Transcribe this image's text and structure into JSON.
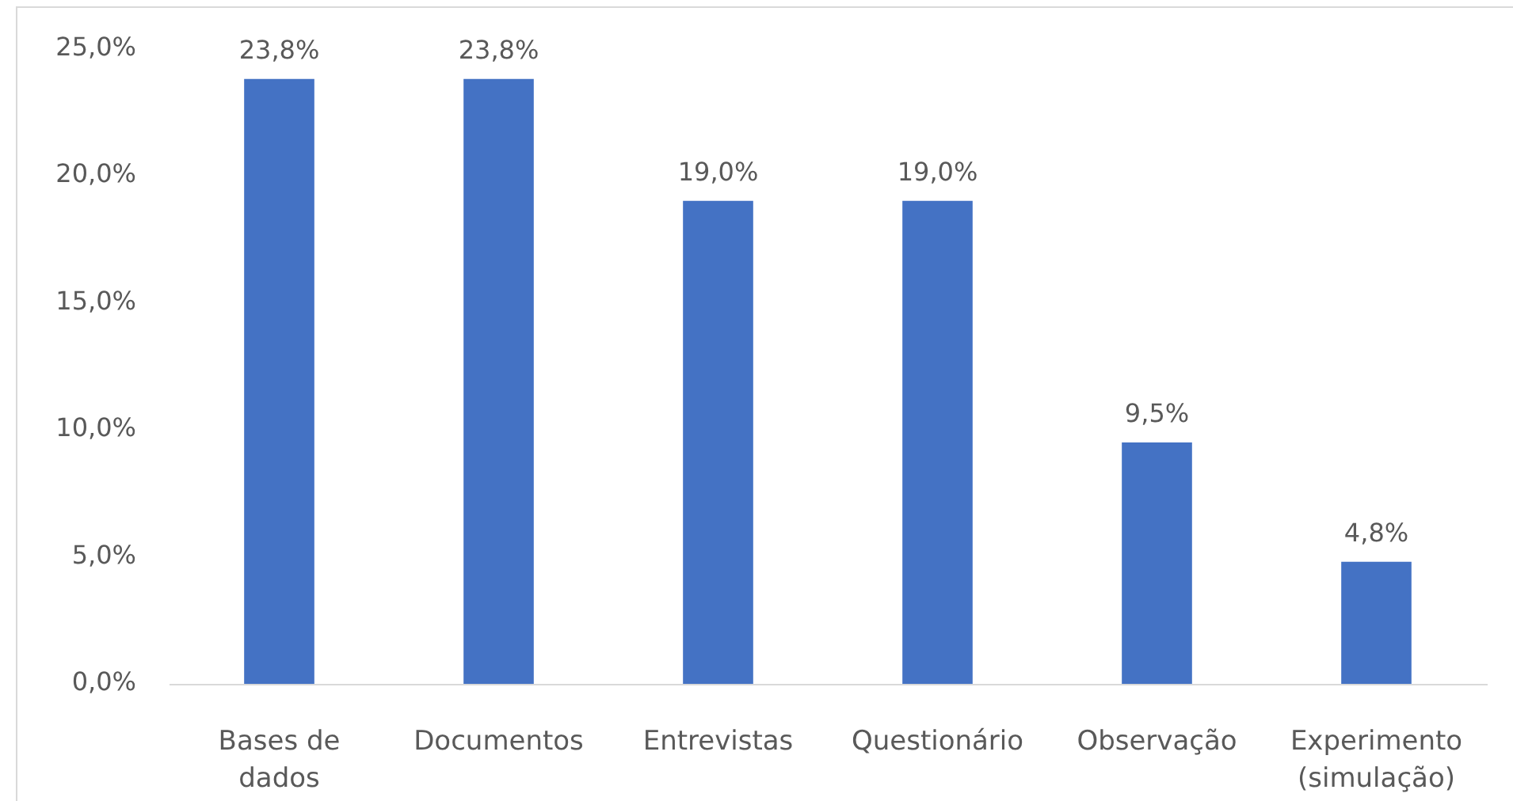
{
  "chart_data": {
    "type": "bar",
    "categories": [
      "Bases de dados",
      "Documentos",
      "Entrevistas",
      "Questionário",
      "Observação",
      "Experimento (simulação)"
    ],
    "values": [
      23.8,
      23.8,
      19.0,
      19.0,
      9.5,
      4.8
    ],
    "value_labels": [
      "23,8%",
      "23,8%",
      "19,0%",
      "19,0%",
      "9,5%",
      "4,8%"
    ],
    "color": "#4472c4",
    "ylim": [
      0,
      25
    ],
    "yticks": [
      {
        "value": 0,
        "label": "0,0%"
      },
      {
        "value": 5,
        "label": "5,0%"
      },
      {
        "value": 10,
        "label": "10,0%"
      },
      {
        "value": 15,
        "label": "15,0%"
      },
      {
        "value": 20,
        "label": "20,0%"
      },
      {
        "value": 25,
        "label": "25,0%"
      }
    ],
    "grid": false,
    "legend": false
  }
}
